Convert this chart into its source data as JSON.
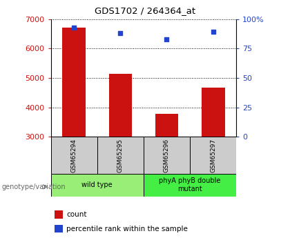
{
  "title": "GDS1702 / 264364_at",
  "samples": [
    "GSM65294",
    "GSM65295",
    "GSM65296",
    "GSM65297"
  ],
  "counts": [
    6720,
    5150,
    3780,
    4680
  ],
  "percentiles": [
    93,
    88,
    83,
    89
  ],
  "ylim_left": [
    3000,
    7000
  ],
  "ylim_right": [
    0,
    100
  ],
  "yticks_left": [
    3000,
    4000,
    5000,
    6000,
    7000
  ],
  "yticks_right": [
    0,
    25,
    50,
    75,
    100
  ],
  "bar_color": "#cc1111",
  "dot_color": "#2244cc",
  "bg_sample": "#cccccc",
  "bg_wildtype": "#99ee77",
  "bg_mutant": "#44ee44",
  "groups": [
    {
      "label": "wild type",
      "samples": [
        0,
        1
      ]
    },
    {
      "label": "phyA phyB double\nmutant",
      "samples": [
        2,
        3
      ]
    }
  ],
  "legend_count_label": "count",
  "legend_pct_label": "percentile rank within the sample",
  "xlabel_genotype": "genotype/variation",
  "left_tick_color": "#cc1111",
  "right_tick_color": "#2244cc"
}
